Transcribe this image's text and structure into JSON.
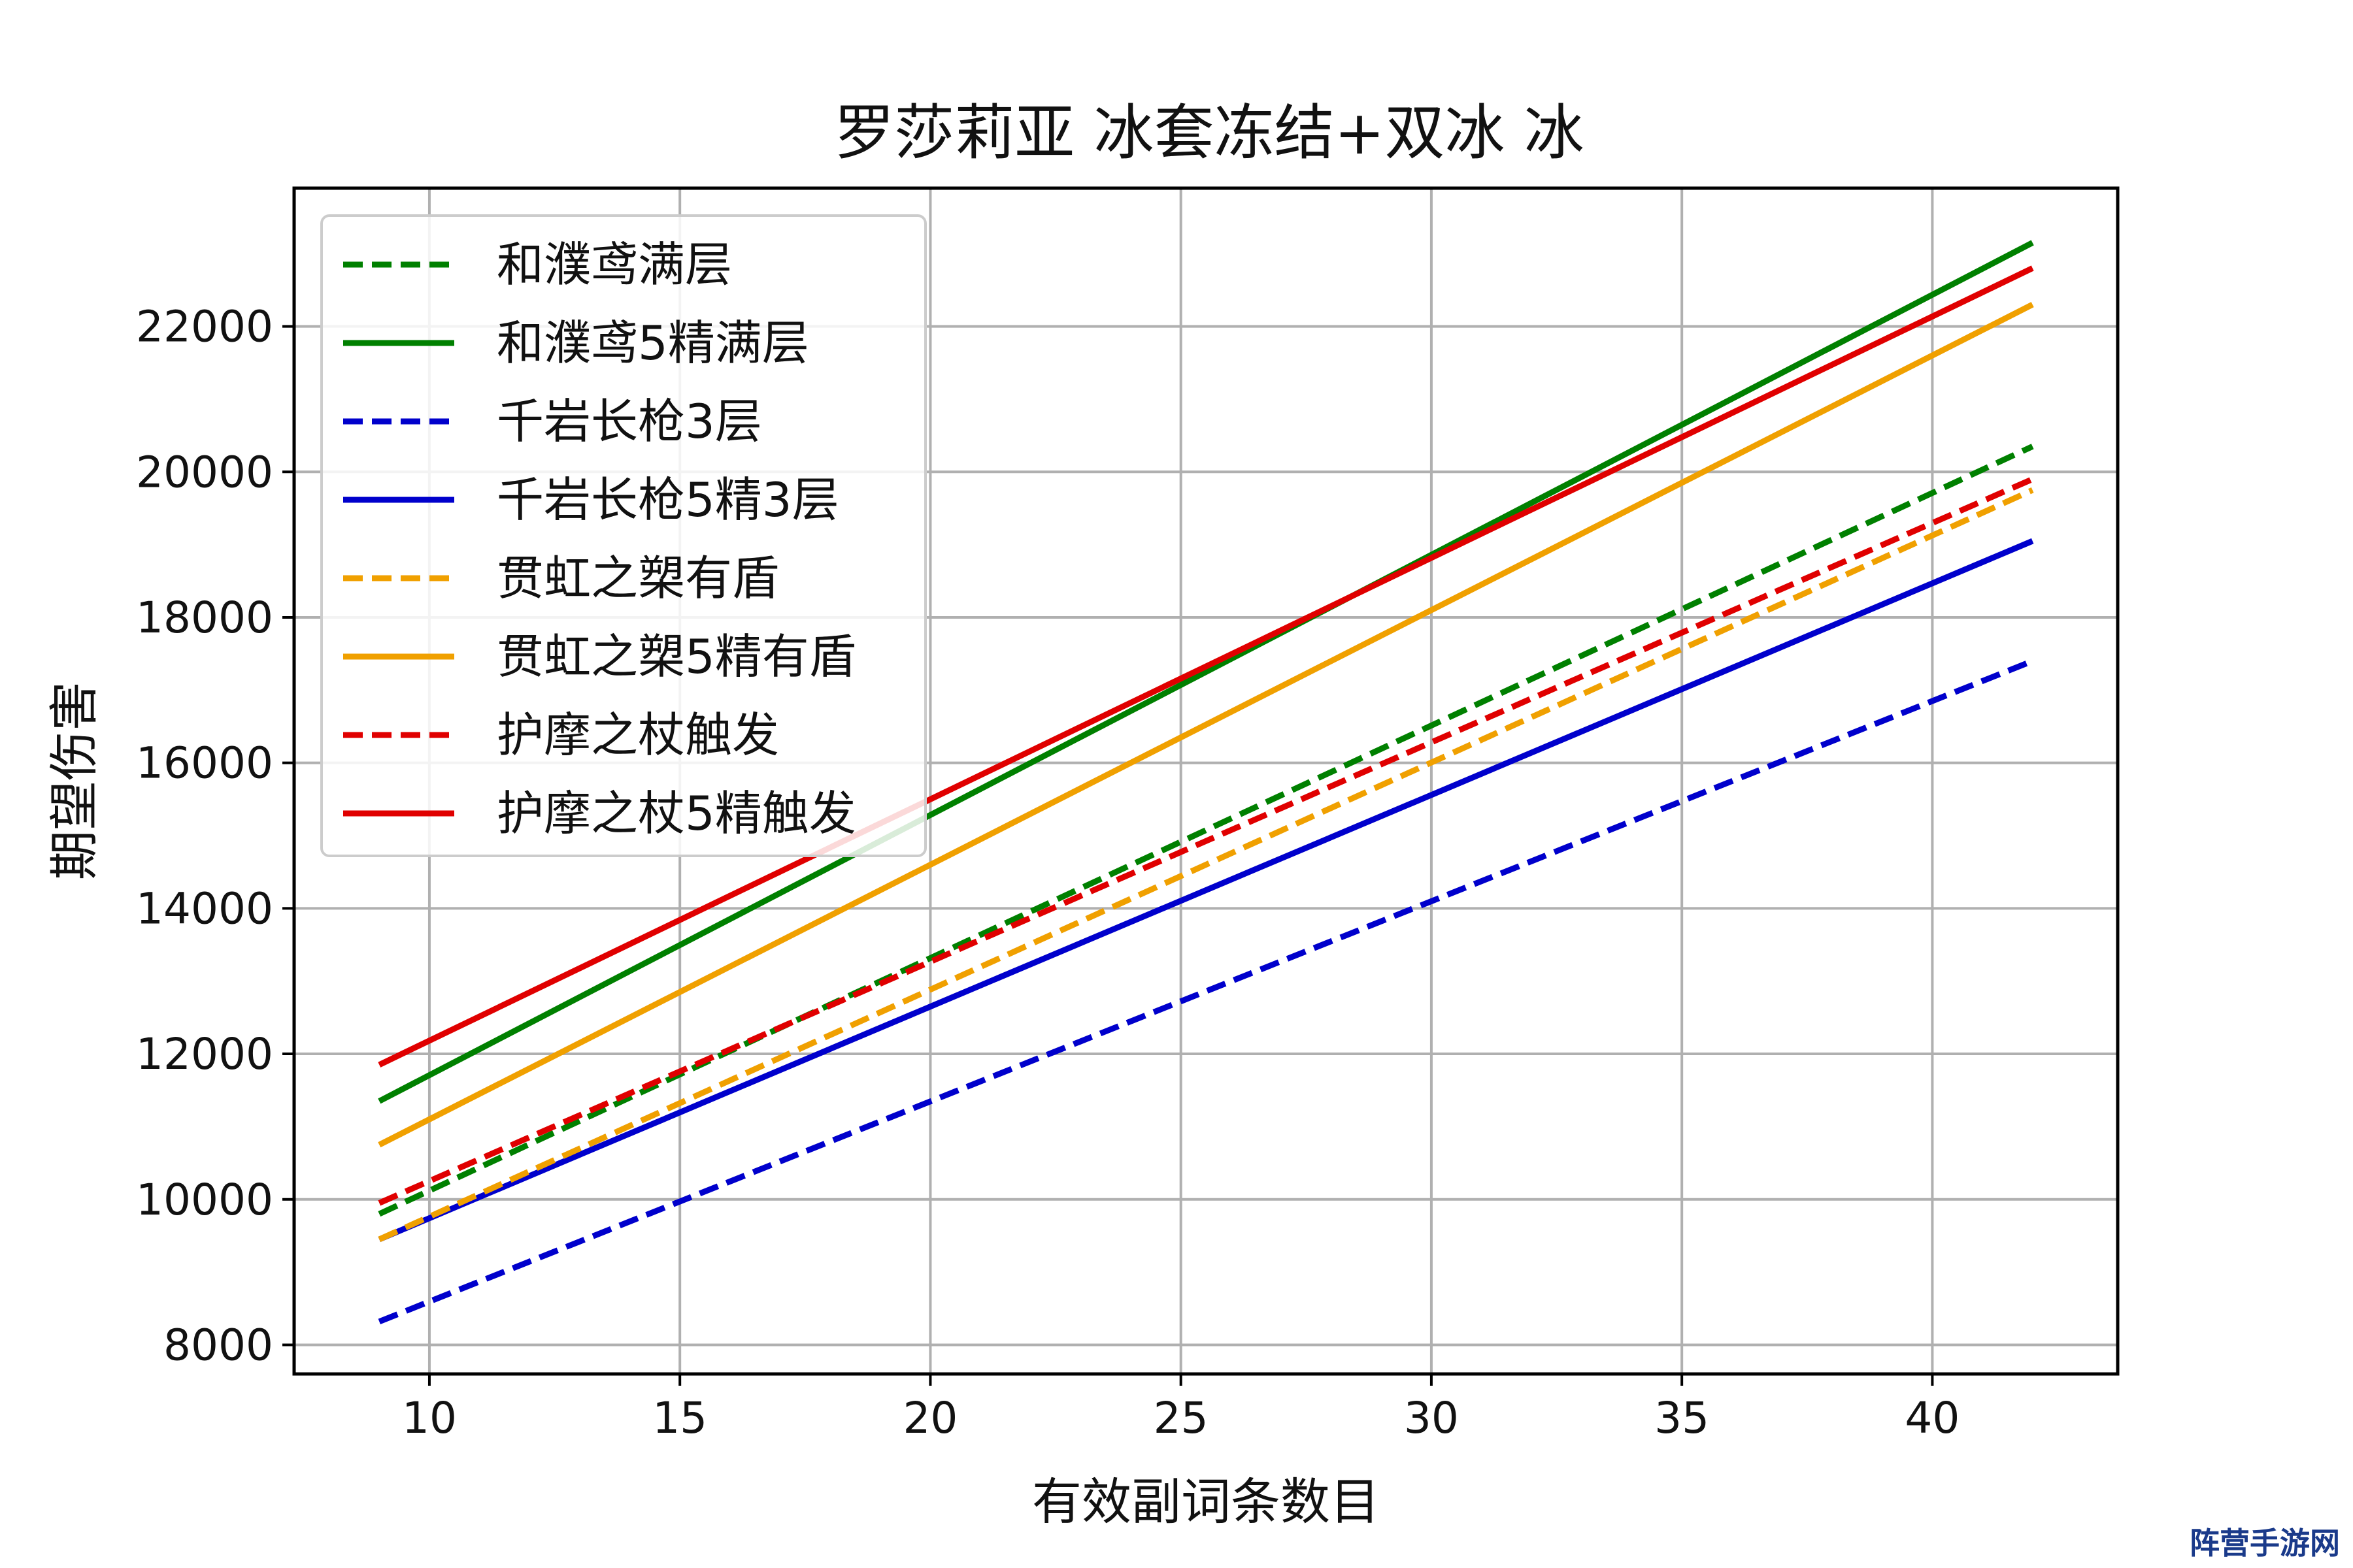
{
  "chart_data": {
    "type": "line",
    "title": "罗莎莉亚 冰套冻结+双冰 冰",
    "xlabel": "有效副词条数目",
    "ylabel": "期望伤害",
    "xlim": [
      7.3,
      43.7
    ],
    "ylim": [
      7600,
      23900
    ],
    "xticks": [
      10,
      15,
      20,
      25,
      30,
      35,
      40
    ],
    "yticks": [
      8000,
      10000,
      12000,
      14000,
      16000,
      18000,
      20000,
      22000
    ],
    "grid": true,
    "legend_position": "top-left",
    "x": [
      9,
      42
    ],
    "series": [
      {
        "name": "和濮鸢满层",
        "style": "dashed",
        "color": "#008000",
        "values": [
          9800,
          20350
        ]
      },
      {
        "name": "和濮鸢5精满层",
        "style": "solid",
        "color": "#008000",
        "values": [
          11350,
          23150
        ]
      },
      {
        "name": "千岩长枪3层",
        "style": "dashed",
        "color": "#0000cc",
        "values": [
          8320,
          17400
        ]
      },
      {
        "name": "千岩长枪5精3层",
        "style": "solid",
        "color": "#0000cc",
        "values": [
          9450,
          19050
        ]
      },
      {
        "name": "贯虹之槊有盾",
        "style": "dashed",
        "color": "#f0a000",
        "values": [
          9450,
          19750
        ]
      },
      {
        "name": "贯虹之槊5精有盾",
        "style": "solid",
        "color": "#f0a000",
        "values": [
          10750,
          22300
        ]
      },
      {
        "name": "护摩之杖触发",
        "style": "dashed",
        "color": "#e00000",
        "values": [
          9950,
          19900
        ]
      },
      {
        "name": "护摩之杖5精触发",
        "style": "solid",
        "color": "#e00000",
        "values": [
          11850,
          22800
        ]
      }
    ]
  },
  "watermark": "阵营手游网"
}
